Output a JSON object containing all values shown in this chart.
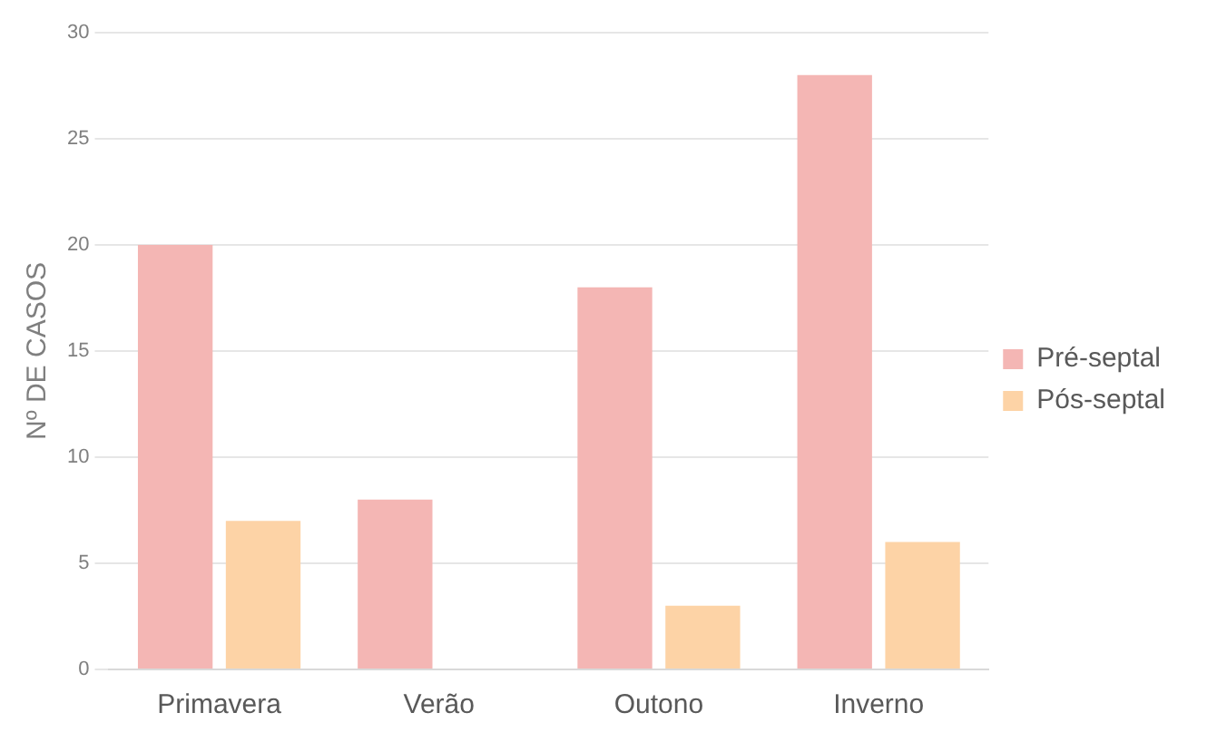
{
  "chart_data": {
    "type": "bar",
    "ylabel": "Nº DE CASOS",
    "categories": [
      "Primavera",
      "Verão",
      "Outono",
      "Inverno"
    ],
    "series": [
      {
        "name": "Pré-septal",
        "color": "#f4b6b4",
        "values": [
          20,
          8,
          18,
          28
        ]
      },
      {
        "name": "Pós-septal",
        "color": "#fdd3a6",
        "values": [
          7,
          0,
          3,
          6
        ]
      }
    ],
    "ylim": [
      0,
      30
    ],
    "yticks": [
      0,
      5,
      10,
      15,
      20,
      25,
      30
    ],
    "grid": "y",
    "legend": "right"
  }
}
